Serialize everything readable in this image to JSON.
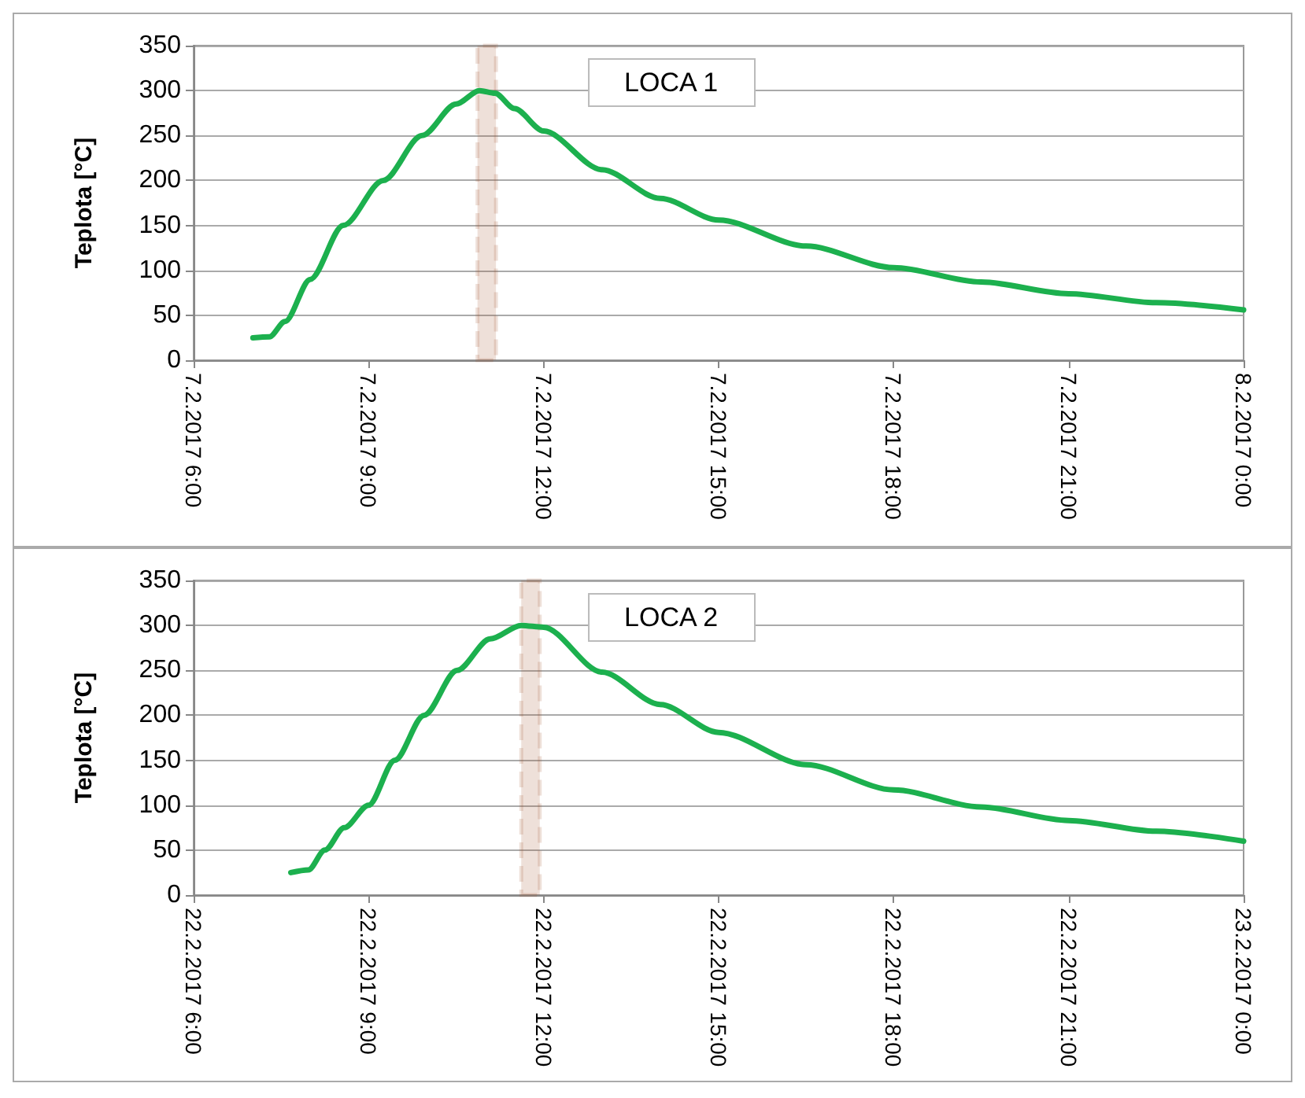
{
  "chart_data": [
    {
      "type": "line",
      "ylabel": "Teplota [°C]",
      "annotations": [
        "LOCA 1"
      ],
      "grid": "y",
      "marker": "none",
      "line_style": "solid",
      "xlim": [
        "2017-02-07T06:00",
        "2017-02-08T00:00"
      ],
      "xticks": [
        {
          "value": "2017-02-07T06:00",
          "label": "7.2.2017 6:00"
        },
        {
          "value": "2017-02-07T09:00",
          "label": "7.2.2017 9:00"
        },
        {
          "value": "2017-02-07T12:00",
          "label": "7.2.2017 12:00"
        },
        {
          "value": "2017-02-07T15:00",
          "label": "7.2.2017 15:00"
        },
        {
          "value": "2017-02-07T18:00",
          "label": "7.2.2017 18:00"
        },
        {
          "value": "2017-02-07T21:00",
          "label": "7.2.2017 21:00"
        },
        {
          "value": "2017-02-08T00:00",
          "label": "8.2.2017 0:00"
        }
      ],
      "ylim": [
        0,
        350
      ],
      "yticks": [
        0,
        50,
        100,
        150,
        200,
        250,
        300,
        350
      ],
      "bands": [
        {
          "axis": "x",
          "from": "2017-02-07T10:52",
          "to": "2017-02-07T11:11",
          "color": "#a0522d"
        }
      ],
      "x": [
        "2017-02-07T07:01",
        "2017-02-07T07:18",
        "2017-02-07T07:34",
        "2017-02-07T08:00",
        "2017-02-07T08:34",
        "2017-02-07T09:15",
        "2017-02-07T09:55",
        "2017-02-07T10:30",
        "2017-02-07T10:54",
        "2017-02-07T11:10",
        "2017-02-07T11:30",
        "2017-02-07T12:00",
        "2017-02-07T13:00",
        "2017-02-07T14:00",
        "2017-02-07T15:00",
        "2017-02-07T16:30",
        "2017-02-07T18:00",
        "2017-02-07T19:30",
        "2017-02-07T21:00",
        "2017-02-07T22:30",
        "2017-02-08T00:00"
      ],
      "series": [
        {
          "color": "#1cb04e",
          "values": [
            25,
            26,
            43,
            90,
            150,
            200,
            250,
            285,
            300,
            297,
            280,
            255,
            212,
            180,
            156,
            127,
            103,
            87,
            74,
            64,
            56
          ]
        }
      ]
    },
    {
      "type": "line",
      "ylabel": "Teplota [°C]",
      "annotations": [
        "LOCA 2"
      ],
      "grid": "y",
      "marker": "none",
      "line_style": "solid",
      "xlim": [
        "2017-02-22T06:00",
        "2017-02-23T00:00"
      ],
      "xticks": [
        {
          "value": "2017-02-22T06:00",
          "label": "22.2.2017 6:00"
        },
        {
          "value": "2017-02-22T09:00",
          "label": "22.2.2017 9:00"
        },
        {
          "value": "2017-02-22T12:00",
          "label": "22.2.2017 12:00"
        },
        {
          "value": "2017-02-22T15:00",
          "label": "22.2.2017 15:00"
        },
        {
          "value": "2017-02-22T18:00",
          "label": "22.2.2017 18:00"
        },
        {
          "value": "2017-02-22T21:00",
          "label": "22.2.2017 21:00"
        },
        {
          "value": "2017-02-23T00:00",
          "label": "23.2.2017 0:00"
        }
      ],
      "ylim": [
        0,
        350
      ],
      "yticks": [
        0,
        50,
        100,
        150,
        200,
        250,
        300,
        350
      ],
      "bands": [
        {
          "axis": "x",
          "from": "2017-02-22T11:37",
          "to": "2017-02-22T11:56",
          "color": "#a0522d"
        }
      ],
      "x": [
        "2017-02-22T07:40",
        "2017-02-22T07:58",
        "2017-02-22T08:15",
        "2017-02-22T08:35",
        "2017-02-22T09:00",
        "2017-02-22T09:27",
        "2017-02-22T09:57",
        "2017-02-22T10:31",
        "2017-02-22T11:05",
        "2017-02-22T11:37",
        "2017-02-22T12:00",
        "2017-02-22T13:00",
        "2017-02-22T14:00",
        "2017-02-22T15:00",
        "2017-02-22T16:30",
        "2017-02-22T18:00",
        "2017-02-22T19:30",
        "2017-02-22T21:00",
        "2017-02-22T22:30",
        "2017-02-23T00:00"
      ],
      "series": [
        {
          "color": "#1cb04e",
          "values": [
            25,
            28,
            50,
            75,
            100,
            150,
            200,
            250,
            285,
            300,
            298,
            248,
            212,
            181,
            145,
            117,
            98,
            83,
            71,
            60
          ]
        }
      ]
    }
  ]
}
